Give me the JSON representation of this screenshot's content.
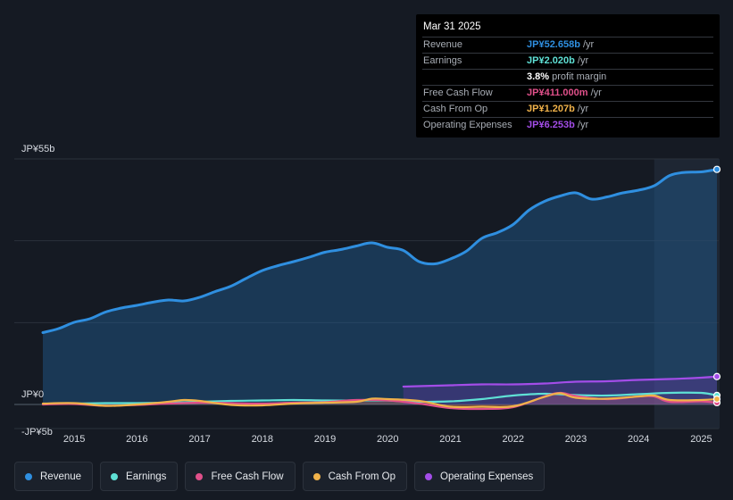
{
  "tooltip": {
    "date": "Mar 31 2025",
    "rows": [
      {
        "label": "Revenue",
        "value": "JP¥52.658b",
        "unit": "/yr",
        "color": "#2f8fe0"
      },
      {
        "label": "Earnings",
        "value": "JP¥2.020b",
        "unit": "/yr",
        "color": "#5fe0d5"
      },
      {
        "label": "",
        "value": "3.8%",
        "unit": "profit margin",
        "color": "#ffffff"
      },
      {
        "label": "Free Cash Flow",
        "value": "JP¥411.000m",
        "unit": "/yr",
        "color": "#e0508a"
      },
      {
        "label": "Cash From Op",
        "value": "JP¥1.207b",
        "unit": "/yr",
        "color": "#f0b24a"
      },
      {
        "label": "Operating Expenses",
        "value": "JP¥6.253b",
        "unit": "/yr",
        "color": "#a34de8"
      }
    ]
  },
  "legend": [
    {
      "label": "Revenue",
      "color": "#2f8fe0"
    },
    {
      "label": "Earnings",
      "color": "#5fe0d5"
    },
    {
      "label": "Free Cash Flow",
      "color": "#e0508a"
    },
    {
      "label": "Cash From Op",
      "color": "#f0b24a"
    },
    {
      "label": "Operating Expenses",
      "color": "#a34de8"
    }
  ],
  "chart_data": {
    "type": "area",
    "title": "",
    "xlabel": "",
    "ylabel": "",
    "ylim": [
      -5,
      55
    ],
    "y_tick_labels": [
      "JP¥55b",
      "JP¥0",
      "-JP¥5b"
    ],
    "x_tick_labels": [
      "2015",
      "2016",
      "2017",
      "2018",
      "2019",
      "2020",
      "2021",
      "2022",
      "2023",
      "2024",
      "2025"
    ],
    "xlim": [
      2014.5,
      2025.25
    ],
    "highlight_from": 2024.25,
    "series": [
      {
        "name": "Revenue",
        "color": "#2f8fe0",
        "filled": true,
        "x": [
          2014.5,
          2014.75,
          2015.0,
          2015.25,
          2015.5,
          2015.75,
          2016.0,
          2016.25,
          2016.5,
          2016.75,
          2017.0,
          2017.25,
          2017.5,
          2017.75,
          2018.0,
          2018.25,
          2018.5,
          2018.75,
          2019.0,
          2019.25,
          2019.5,
          2019.75,
          2020.0,
          2020.25,
          2020.5,
          2020.75,
          2021.0,
          2021.25,
          2021.5,
          2021.75,
          2022.0,
          2022.25,
          2022.5,
          2022.75,
          2023.0,
          2023.25,
          2023.5,
          2023.75,
          2024.0,
          2024.25,
          2024.5,
          2024.75,
          2025.0,
          2025.25
        ],
        "values": [
          16.1,
          17.0,
          18.4,
          19.2,
          20.7,
          21.6,
          22.2,
          22.9,
          23.4,
          23.2,
          24.0,
          25.3,
          26.5,
          28.3,
          30.0,
          31.1,
          32.0,
          33.0,
          34.1,
          34.7,
          35.5,
          36.2,
          35.2,
          34.5,
          32.0,
          31.5,
          32.6,
          34.3,
          37.2,
          38.5,
          40.3,
          43.5,
          45.5,
          46.7,
          47.4,
          46.0,
          46.5,
          47.4,
          48.0,
          49.0,
          51.3,
          52.0,
          52.1,
          52.658
        ]
      },
      {
        "name": "Earnings",
        "color": "#5fe0d5",
        "filled": false,
        "x": [
          2014.5,
          2015.0,
          2015.5,
          2016.0,
          2016.5,
          2017.0,
          2017.5,
          2018.0,
          2018.5,
          2019.0,
          2019.5,
          2020.0,
          2020.5,
          2021.0,
          2021.5,
          2022.0,
          2022.5,
          2023.0,
          2023.5,
          2024.0,
          2024.5,
          2025.0,
          2025.25
        ],
        "values": [
          0.1,
          0.2,
          0.3,
          0.3,
          0.4,
          0.6,
          0.8,
          0.9,
          1.0,
          0.9,
          0.9,
          0.9,
          0.6,
          0.7,
          1.2,
          2.0,
          2.4,
          2.1,
          2.0,
          2.3,
          2.6,
          2.6,
          2.02
        ]
      },
      {
        "name": "Free Cash Flow",
        "color": "#e0508a",
        "filled": true,
        "x": [
          2014.5,
          2015.0,
          2015.5,
          2016.0,
          2016.5,
          2017.0,
          2017.5,
          2018.0,
          2018.5,
          2019.0,
          2019.5,
          2020.0,
          2020.5,
          2021.0,
          2021.5,
          2022.0,
          2022.5,
          2022.75,
          2023.0,
          2023.5,
          2024.0,
          2024.25,
          2024.5,
          2025.0,
          2025.25
        ],
        "values": [
          0.0,
          0.1,
          -0.3,
          -0.1,
          0.2,
          0.4,
          0.3,
          0.2,
          0.4,
          0.5,
          1.0,
          0.9,
          0.2,
          -0.8,
          -1.0,
          -0.6,
          1.8,
          2.6,
          1.9,
          1.2,
          1.8,
          1.8,
          0.6,
          0.7,
          0.411
        ]
      },
      {
        "name": "Cash From Op",
        "color": "#f0b24a",
        "filled": true,
        "x": [
          2014.5,
          2015.0,
          2015.5,
          2016.0,
          2016.5,
          2016.75,
          2017.0,
          2017.5,
          2018.0,
          2018.5,
          2019.0,
          2019.5,
          2019.75,
          2020.0,
          2020.5,
          2021.0,
          2021.5,
          2022.0,
          2022.5,
          2022.75,
          2023.0,
          2023.5,
          2024.0,
          2024.25,
          2024.5,
          2025.0,
          2025.25
        ],
        "values": [
          0.2,
          0.3,
          -0.3,
          0.0,
          0.6,
          1.0,
          0.8,
          -0.1,
          -0.2,
          0.2,
          0.4,
          0.6,
          1.3,
          1.2,
          0.8,
          -0.5,
          -0.5,
          -0.4,
          1.7,
          2.5,
          1.5,
          1.3,
          1.8,
          2.0,
          1.0,
          1.0,
          1.207
        ]
      },
      {
        "name": "Operating Expenses",
        "color": "#a34de8",
        "filled": true,
        "x": [
          2020.25,
          2020.5,
          2021.0,
          2021.5,
          2022.0,
          2022.5,
          2023.0,
          2023.5,
          2024.0,
          2024.5,
          2025.0,
          2025.25
        ],
        "values": [
          4.0,
          4.1,
          4.3,
          4.5,
          4.5,
          4.7,
          5.1,
          5.2,
          5.5,
          5.7,
          6.0,
          6.253
        ]
      }
    ]
  }
}
